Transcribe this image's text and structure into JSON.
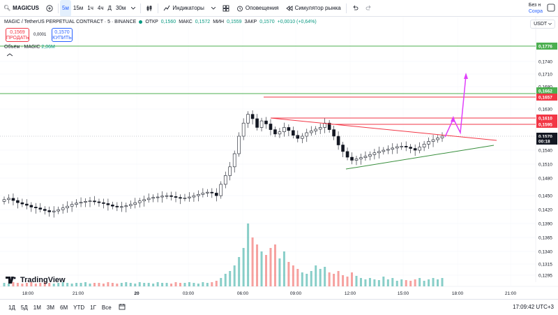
{
  "toolbar": {
    "symbol": "MAGICUS",
    "timeframes": [
      "5м",
      "15м",
      "1ч",
      "4ч",
      "Д",
      "30м"
    ],
    "active_timeframe": "5м",
    "indicators_label": "Индикаторы",
    "alerts_label": "Оповещения",
    "simulator_label": "Симулятор рынка",
    "account_line1": "Без н",
    "account_line2": "Сохра"
  },
  "legend": {
    "title": "MAGIC / TetherUS PERPETUAL CONTRACT · 5 · BINANCE",
    "open_label": "ОТКР",
    "open_value": "0,1560",
    "high_label": "МАКС",
    "high_value": "0,1572",
    "low_label": "МИН",
    "low_value": "0,1559",
    "close_label": "ЗАКР",
    "close_value": "0,1570",
    "change": "+0,0010 (+0,64%)"
  },
  "trade": {
    "sell_price": "0,1569",
    "sell_label": "ПРОДАТЬ",
    "spread": "0,0001",
    "buy_price": "0,1570",
    "buy_label": "КУПИТЬ"
  },
  "volume_legend": {
    "label": "Объём · MAGIC",
    "value": "2,06M"
  },
  "currency": "USDT",
  "logo_text": "TradingView",
  "price_axis": {
    "ticks": [
      "0,1740",
      "0,1710",
      "0,1680",
      "0,1630",
      "0,1570",
      "0,1540",
      "0,1510",
      "0,1480",
      "0,1450",
      "0,1420",
      "0,1390",
      "0,1365",
      "0,1340",
      "0,1315",
      "0,1295"
    ],
    "labels": [
      {
        "text": "0,1776",
        "color": "#4caf50"
      },
      {
        "text": "0,1662",
        "color": "#4caf50"
      },
      {
        "text": "0,1657",
        "color": "#f23645"
      },
      {
        "text": "0,1610",
        "color": "#f23645"
      },
      {
        "text": "0,1595",
        "color": "#f23645"
      },
      {
        "text": "0,1570",
        "color": "#131722"
      },
      {
        "text": "00:18",
        "color": "#131722"
      }
    ]
  },
  "time_axis": [
    "18:00",
    "21:00",
    "20",
    "03:00",
    "06:00",
    "09:00",
    "12:00",
    "15:00",
    "18:00",
    "21:00"
  ],
  "bottom": {
    "ranges": [
      "1Д",
      "5Д",
      "1М",
      "3М",
      "6М",
      "YTD",
      "1Г",
      "Все"
    ],
    "clock": "17:09:42 UTC+3"
  },
  "chart_data": {
    "type": "candlestick",
    "price_levels": {
      "green": [
        0.1776,
        0.1662
      ],
      "red": [
        0.1657,
        0.161,
        0.1595
      ]
    },
    "last_price": 0.157,
    "close": [
      0.1425,
      0.1428,
      0.1423,
      0.1418,
      0.1415,
      0.1412,
      0.1408,
      0.1406,
      0.1403,
      0.14,
      0.1397,
      0.1399,
      0.1402,
      0.1406,
      0.141,
      0.1414,
      0.1417,
      0.1419,
      0.1421,
      0.1422,
      0.142,
      0.1418,
      0.1416,
      0.1413,
      0.141,
      0.1408,
      0.1409,
      0.1411,
      0.1414,
      0.1418,
      0.1422,
      0.1425,
      0.1428,
      0.143,
      0.1431,
      0.1433,
      0.1434,
      0.1432,
      0.143,
      0.1428,
      0.1429,
      0.1431,
      0.1434,
      0.1437,
      0.144,
      0.1442,
      0.144,
      0.1434,
      0.146,
      0.148,
      0.15,
      0.153,
      0.157,
      0.16,
      0.162,
      0.161,
      0.159,
      0.1605,
      0.1598,
      0.1585,
      0.1575,
      0.158,
      0.159,
      0.1583,
      0.1572,
      0.1565,
      0.157,
      0.1578,
      0.1582,
      0.1586,
      0.159,
      0.16,
      0.1585,
      0.157,
      0.155,
      0.1535,
      0.1522,
      0.1515,
      0.1518,
      0.1521,
      0.1524,
      0.1528,
      0.1532,
      0.1535,
      0.1538,
      0.154,
      0.1543,
      0.1546,
      0.1547,
      0.1545,
      0.1542,
      0.1538,
      0.1545,
      0.1552,
      0.1558,
      0.1562,
      0.1566,
      0.157
    ],
    "volume": [
      0.05,
      0.04,
      0.06,
      0.05,
      0.04,
      0.05,
      0.06,
      0.04,
      0.05,
      0.06,
      0.05,
      0.04,
      0.05,
      0.06,
      0.05,
      0.04,
      0.05,
      0.05,
      0.06,
      0.04,
      0.05,
      0.05,
      0.04,
      0.06,
      0.05,
      0.04,
      0.05,
      0.06,
      0.05,
      0.04,
      0.06,
      0.05,
      0.05,
      0.04,
      0.06,
      0.05,
      0.05,
      0.04,
      0.06,
      0.05,
      0.05,
      0.06,
      0.05,
      0.04,
      0.06,
      0.05,
      0.06,
      0.08,
      0.12,
      0.18,
      0.22,
      0.3,
      0.42,
      0.55,
      0.9,
      0.7,
      0.6,
      0.5,
      0.45,
      0.55,
      0.6,
      0.4,
      0.5,
      0.35,
      0.3,
      0.25,
      0.2,
      0.18,
      0.22,
      0.3,
      0.25,
      0.28,
      0.2,
      0.18,
      0.22,
      0.16,
      0.14,
      0.2,
      0.15,
      0.12,
      0.1,
      0.12,
      0.1,
      0.09,
      0.14,
      0.1,
      0.12,
      0.08,
      0.1,
      0.09,
      0.08,
      0.1,
      0.12,
      0.08,
      0.1,
      0.12,
      0.1,
      0.12
    ]
  }
}
